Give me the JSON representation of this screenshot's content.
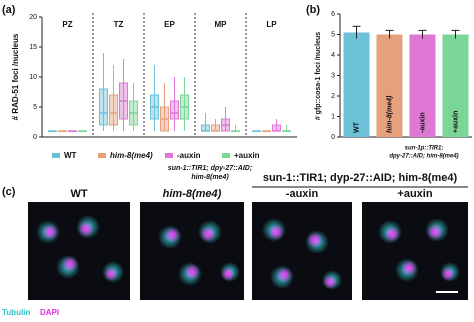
{
  "chart_data": [
    {
      "type": "box",
      "panel": "(a)",
      "ylabel": "# RAD-51 foci /nucleus",
      "categories": [
        "PZ",
        "TZ",
        "EP",
        "MP",
        "LP"
      ],
      "ylim": [
        0,
        20
      ],
      "yticks": [
        0,
        5,
        10,
        15,
        20
      ],
      "group_label": [
        "sun-1::TIR1; dpy-27::AID;",
        "him-8(me4)"
      ],
      "series": [
        {
          "name": "WT",
          "color": "#6cc0d8",
          "values": [
            [
              1,
              1,
              1,
              1,
              1
            ],
            [
              1,
              2,
              4,
              8,
              14
            ],
            [
              1,
              3,
              5,
              7,
              12
            ],
            [
              1,
              1,
              1,
              2,
              4
            ],
            [
              1,
              1,
              1,
              1,
              1
            ]
          ]
        },
        {
          "name": "him-8(me4)",
          "color": "#e6a07e",
          "values": [
            [
              1,
              1,
              1,
              1,
              1
            ],
            [
              1,
              2,
              4,
              7,
              12
            ],
            [
              1,
              1,
              3,
              5,
              9
            ],
            [
              1,
              1,
              1,
              2,
              3
            ],
            [
              1,
              1,
              1,
              1,
              1
            ]
          ]
        },
        {
          "name": "-auxin",
          "color": "#de78d4",
          "values": [
            [
              1,
              1,
              1,
              1,
              1
            ],
            [
              1,
              3,
              6,
              9,
              13
            ],
            [
              1,
              3,
              4,
              6,
              10
            ],
            [
              1,
              1,
              2,
              3,
              5
            ],
            [
              1,
              1,
              1,
              2,
              3
            ]
          ]
        },
        {
          "name": "+auxin",
          "color": "#7bd597",
          "values": [
            [
              1,
              1,
              1,
              1,
              1
            ],
            [
              1,
              2,
              4,
              6,
              9
            ],
            [
              1,
              3,
              5,
              7,
              10
            ],
            [
              1,
              1,
              1,
              1,
              2
            ],
            [
              1,
              1,
              1,
              1,
              2
            ]
          ]
        }
      ]
    },
    {
      "type": "bar",
      "panel": "(b)",
      "ylabel": "# gfp::cosa-1 foci /nucleus",
      "categories": [
        "WT",
        "him-8(me4)",
        "-auxin",
        "+auxin"
      ],
      "values": [
        5.1,
        5.0,
        5.0,
        5.0
      ],
      "errors": [
        0.3,
        0.2,
        0.2,
        0.2
      ],
      "colors": [
        "#6cc0d8",
        "#e6a07e",
        "#de78d4",
        "#7bd597"
      ],
      "ylim": [
        0,
        6
      ],
      "yticks": [
        0,
        1,
        2,
        3,
        4,
        5,
        6
      ],
      "group_label": [
        "sun-1p::TIR1;",
        "dpy-27::AID; him-8(me4)"
      ]
    }
  ],
  "figure_c": {
    "panel": "(c)",
    "columns": [
      "WT",
      "him-8(me4)",
      "-auxin",
      "+auxin"
    ],
    "group_label": "sun-1::TIR1; dyp-27::AID; him-8(me4)",
    "channels": [
      "Tubulin",
      "DAPI"
    ]
  }
}
